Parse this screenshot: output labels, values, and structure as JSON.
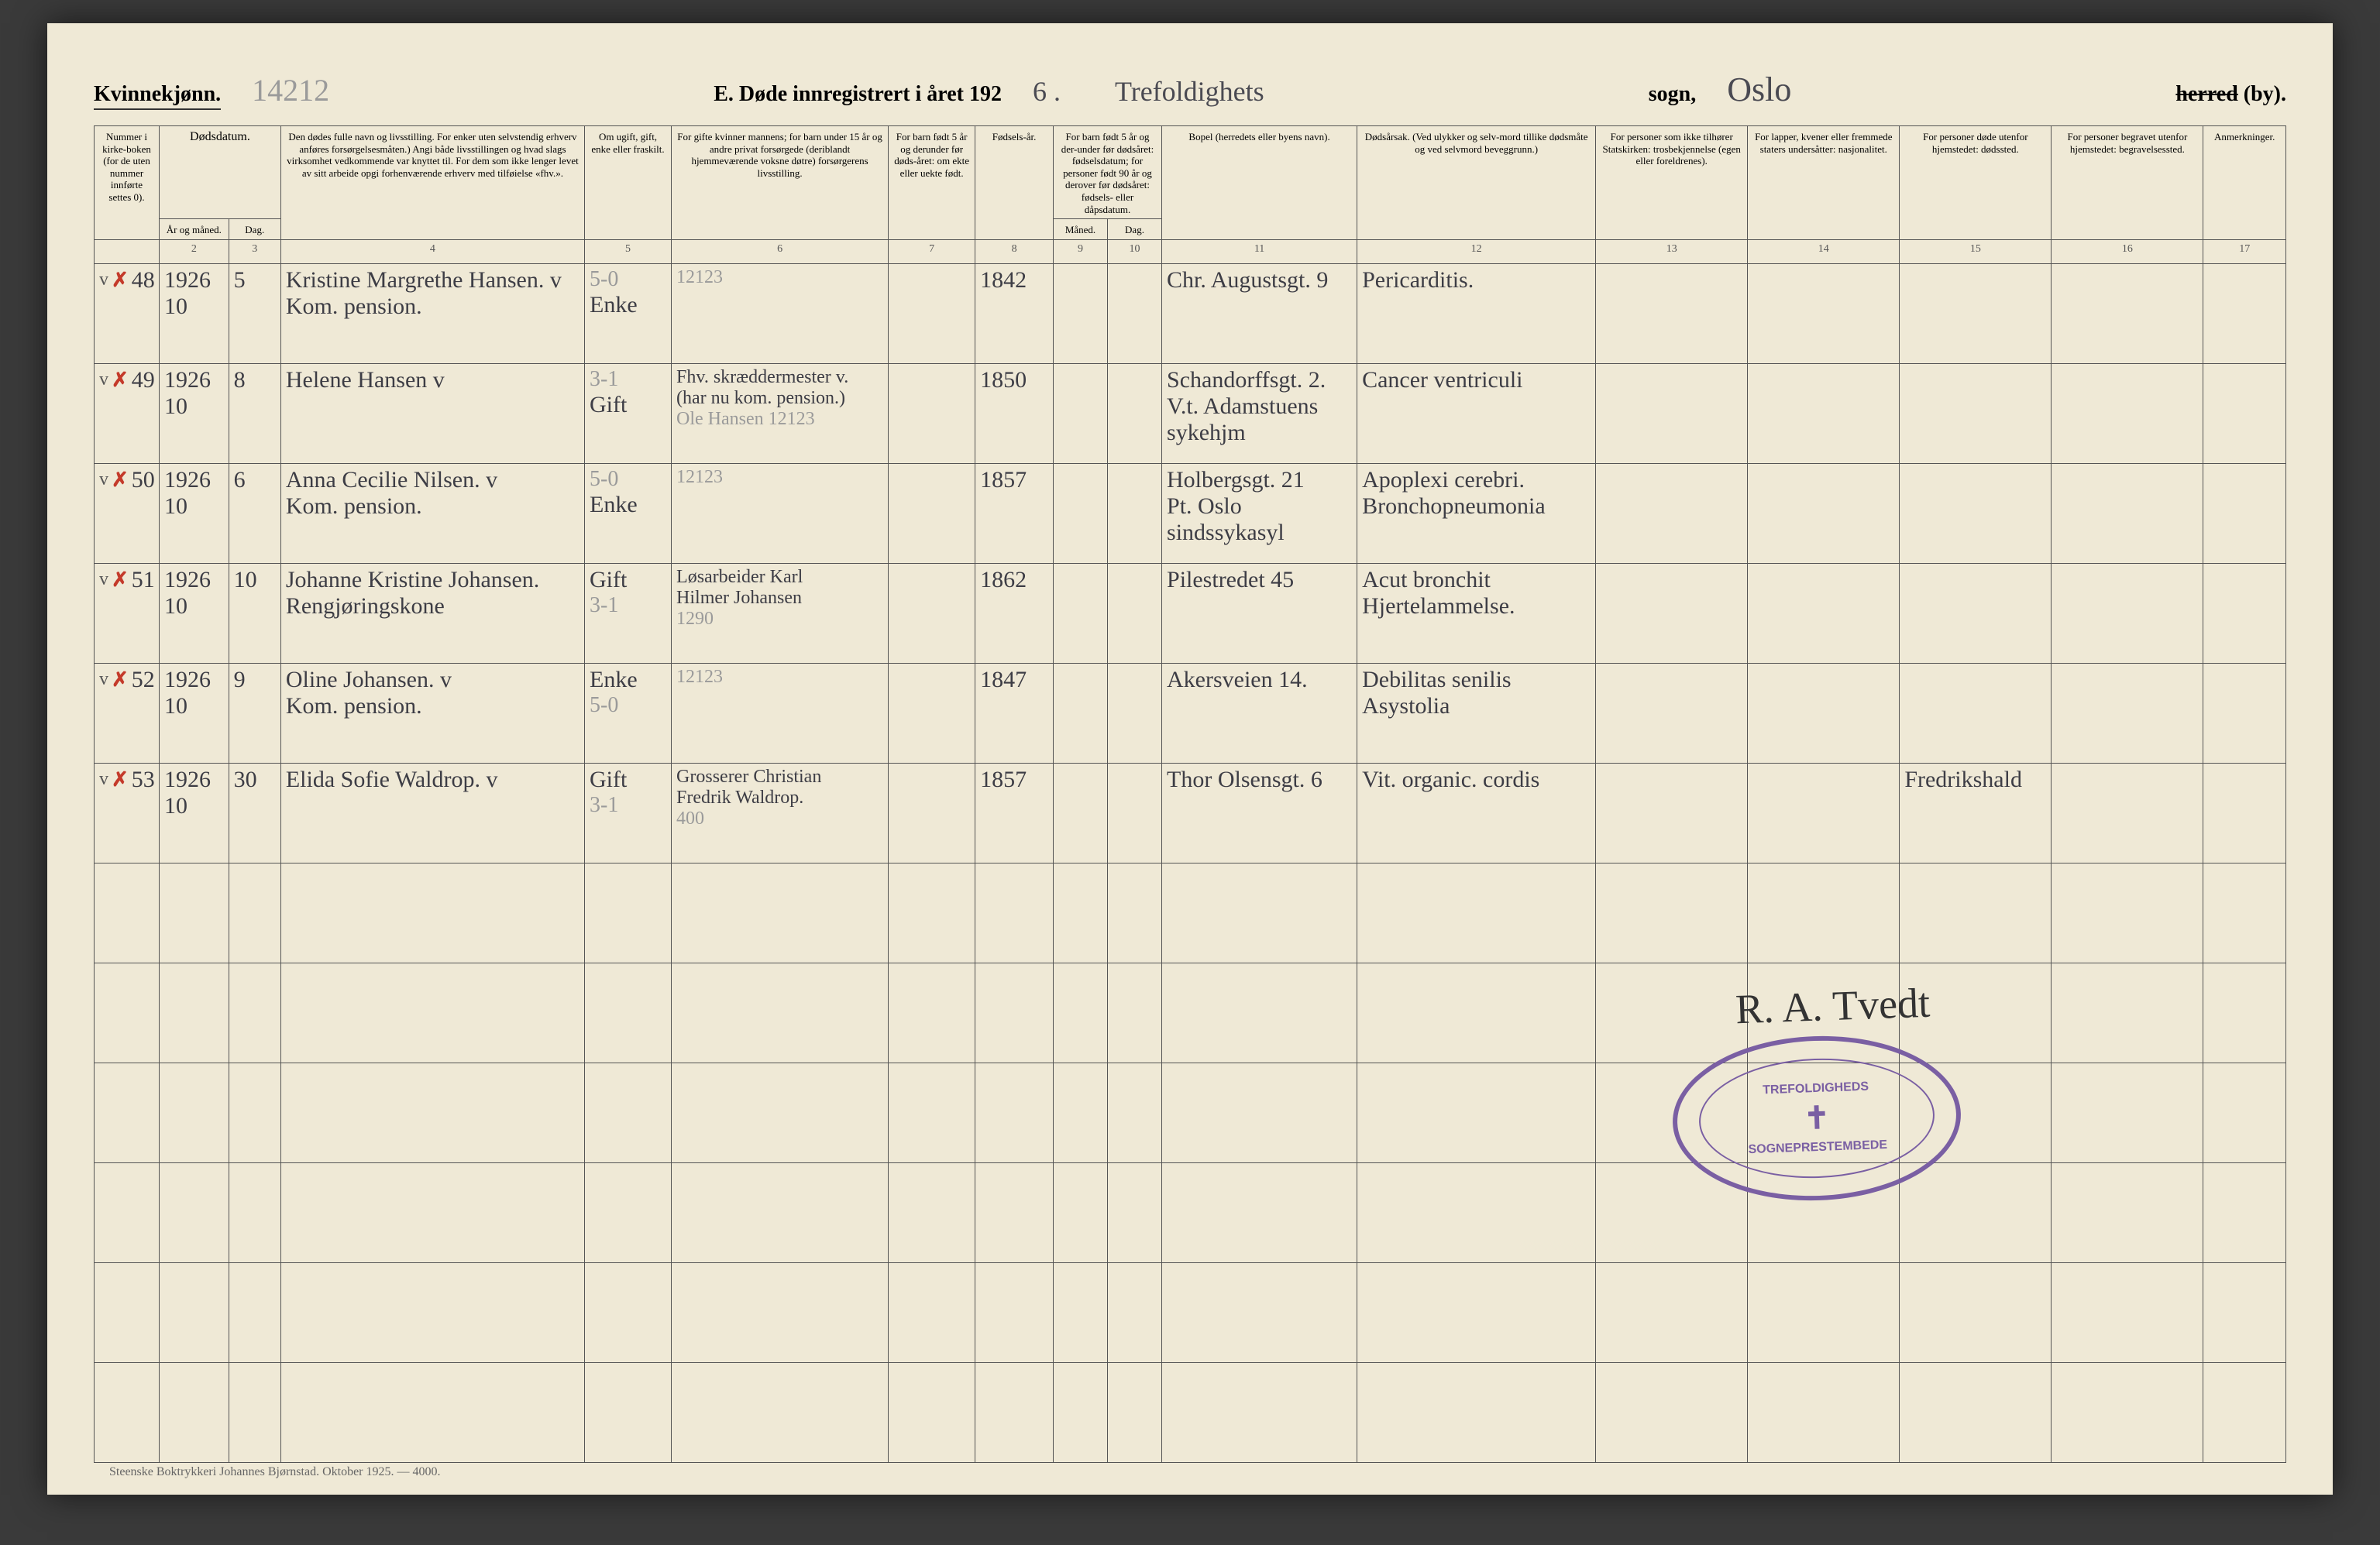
{
  "header": {
    "gender_label": "Kvinnekjønn.",
    "pencil_number": "14212",
    "section_label": "E.  Døde innregistrert i året 192",
    "year_digit": "6 .",
    "parish_hand": "Trefoldighets",
    "sogn_label": "sogn,",
    "city_hand": "Oslo",
    "herred_strike": "herred",
    "by_label": "(by)."
  },
  "columns": {
    "c1": "Nummer i kirke-boken (for de uten nummer innførte settes 0).",
    "c2a": "Dødsdatum.",
    "c2b_year": "År og måned.",
    "c2b_day": "Dag.",
    "c4": "Den dødes fulle navn og livsstilling. For enker uten selvstendig erhverv anføres forsørgelsesmåten.) Angi både livsstillingen og hvad slags virksomhet vedkommende var knyttet til. For dem som ikke lenger levet av sitt arbeide opgi forhenværende erhverv med tilføielse «fhv.».",
    "c5": "Om ugift, gift, enke eller fraskilt.",
    "c6": "For gifte kvinner mannens; for barn under 15 år og andre privat forsørgede (deriblandt hjemmeværende voksne døtre) forsørgerens livsstilling.",
    "c7": "For barn født 5 år og derunder før døds-året: om ekte eller uekte født.",
    "c8": "Fødsels-år.",
    "c9": "For barn født 5 år og der-under før dødsåret: fødselsdatum; for personer født 90 år og derover før dødsåret: fødsels- eller dåpsdatum.",
    "c9a": "Måned.",
    "c9b": "Dag.",
    "c11": "Bopel (herredets eller byens navn).",
    "c12": "Dødsårsak. (Ved ulykker og selv-mord tillike dødsmåte og ved selvmord beveggrunn.)",
    "c13": "For personer som ikke tilhører Statskirken: trosbekjennelse (egen eller foreldrenes).",
    "c14": "For lapper, kvener eller fremmede staters undersåtter: nasjonalitet.",
    "c15": "For personer døde utenfor hjemstedet: dødssted.",
    "c16": "For personer begravet utenfor hjemstedet: begravelsessted.",
    "c17": "Anmerkninger."
  },
  "colnums": [
    "",
    "2",
    "3",
    "4",
    "5",
    "6",
    "7",
    "8",
    "9",
    "10",
    "11",
    "12",
    "13",
    "14",
    "15",
    "16",
    "17"
  ],
  "rows": [
    {
      "mark": "v ✗",
      "no": "48",
      "ym": "1926\n10",
      "day": "5",
      "name": "Kristine Margrethe Hansen.  v\n   Kom. pension.",
      "civil": "5-0\nEnke",
      "provider": "12123",
      "ekte": "",
      "birth": "1842",
      "bd": "",
      "bopel": "Chr. Augustsgt. 9",
      "cause": "Pericarditis.",
      "c13": "",
      "c14": "",
      "c15": "",
      "c16": "",
      "c17": ""
    },
    {
      "mark": "v ✗",
      "no": "49",
      "ym": "1926\n10",
      "day": "8",
      "name": "Helene Hansen             v",
      "civil": "3-1\nGift",
      "provider": "Fhv. skræddermester v.\n(har nu kom. pension.)\nOle Hansen   12123",
      "ekte": "",
      "birth": "1850",
      "bd": "",
      "bopel": "Schandorffsgt. 2.\nV.t. Adamstuens sykehjm",
      "cause": "Cancer ventriculi",
      "c13": "",
      "c14": "",
      "c15": "",
      "c16": "",
      "c17": ""
    },
    {
      "mark": "v ✗",
      "no": "50",
      "ym": "1926\n10",
      "day": "6",
      "name": "Anna Cecilie Nilsen.   v\n   Kom. pension.",
      "civil": "5-0\nEnke",
      "provider": "12123",
      "ekte": "",
      "birth": "1857",
      "bd": "",
      "bopel": "Holbergsgt. 21\nPt. Oslo sindssykasyl",
      "cause": "Apoplexi cerebri.\nBronchopneumonia",
      "c13": "",
      "c14": "",
      "c15": "",
      "c16": "",
      "c17": ""
    },
    {
      "mark": "v ✗",
      "no": "51",
      "ym": "1926\n10",
      "day": "10",
      "name": "Johanne Kristine Johansen.\n   Rengjøringskone",
      "civil": "Gift\n3-1",
      "provider": "Løsarbeider Karl\nHilmer Johansen\n   1290",
      "ekte": "",
      "birth": "1862",
      "bd": "",
      "bopel": "Pilestredet 45",
      "cause": "Acut bronchit\nHjertelammelse.",
      "c13": "",
      "c14": "",
      "c15": "",
      "c16": "",
      "c17": ""
    },
    {
      "mark": "v ✗",
      "no": "52",
      "ym": "1926\n10",
      "day": "9",
      "name": "Oline Johansen.        v\n   Kom. pension.",
      "civil": "Enke\n5-0",
      "provider": "12123",
      "ekte": "",
      "birth": "1847",
      "bd": "",
      "bopel": "Akersveien 14.",
      "cause": "Debilitas senilis\nAsystolia",
      "c13": "",
      "c14": "",
      "c15": "",
      "c16": "",
      "c17": ""
    },
    {
      "mark": "v ✗",
      "no": "53",
      "ym": "1926\n10",
      "day": "30",
      "name": "Elida Sofie Waldrop.  v",
      "civil": "Gift\n3-1",
      "provider": "Grosserer Christian\nFredrik Waldrop.\n   400",
      "ekte": "",
      "birth": "1857",
      "bd": "",
      "bopel": "Thor Olsensgt. 6",
      "cause": "Vit. organic. cordis",
      "c13": "",
      "c14": "",
      "c15": "Fredrikshald",
      "c16": "",
      "c17": ""
    }
  ],
  "blank_rows": 6,
  "stamp": {
    "top": "TREFOLDIGHEDS",
    "bottom": "SOGNEPRESTEMBEDE"
  },
  "signature": "R. A. Tvedt",
  "footer": "Steenske Boktrykkeri Johannes Bjørnstad.  Oktober 1925. — 4000.",
  "style": {
    "page_bg": "#efe9d6",
    "ink": "#3d3d45",
    "pencil": "#9a9a9a",
    "red": "#c43a2a",
    "stamp": "#7a5fa3",
    "border": "#555555",
    "col_widths_pct": [
      3.0,
      3.2,
      2.4,
      14.0,
      4.0,
      10.0,
      4.0,
      3.6,
      2.5,
      2.5,
      9.0,
      11.0,
      7.0,
      7.0,
      7.0,
      7.0,
      3.8
    ]
  }
}
